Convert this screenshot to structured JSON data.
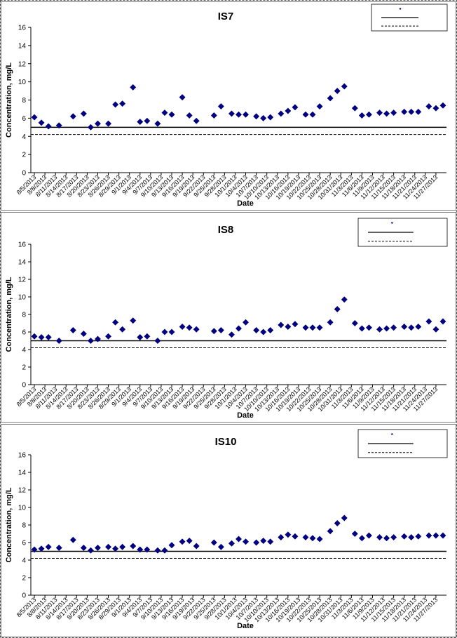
{
  "chart_data": [
    {
      "type": "scatter",
      "title": "IS7",
      "xlabel": "Date",
      "ylabel": "Concentration, mg/L",
      "ylim": [
        0,
        16
      ],
      "yticks": [
        0,
        2,
        4,
        6,
        8,
        10,
        12,
        14,
        16
      ],
      "grid": false,
      "legend_position": "top-right",
      "x_tick_labels": [
        "8/5/2013",
        "8/8/2013",
        "8/11/2013",
        "8/14/2013",
        "8/17/2013",
        "8/20/2013",
        "8/23/2013",
        "8/26/2013",
        "8/29/2013",
        "9/1/2013",
        "9/4/2013",
        "9/7/2013",
        "9/10/2013",
        "9/13/2013",
        "9/16/2013",
        "9/19/2013",
        "9/22/2013",
        "9/25/2013",
        "9/28/2013",
        "10/1/2013",
        "10/4/2013",
        "10/7/2013",
        "10/10/2013",
        "10/13/2013",
        "10/16/2013",
        "10/19/2013",
        "10/22/2013",
        "10/25/2013",
        "10/28/2013",
        "10/31/2013",
        "11/3/2013",
        "11/6/2013",
        "11/9/2013",
        "11/12/2013",
        "11/15/2013",
        "11/18/2013",
        "11/21/2013",
        "11/24/2013",
        "11/27/2013"
      ],
      "reference_lines": [
        {
          "style": "solid",
          "value": 5.0
        },
        {
          "style": "dashed",
          "value": 4.2
        }
      ],
      "points": [
        {
          "x": "8/5/2013",
          "y": 6.1
        },
        {
          "x": "8/7/2013",
          "y": 5.5
        },
        {
          "x": "8/9/2013",
          "y": 5.1
        },
        {
          "x": "8/12/2013",
          "y": 5.2
        },
        {
          "x": "8/16/2013",
          "y": 6.2
        },
        {
          "x": "8/19/2013",
          "y": 6.5
        },
        {
          "x": "8/21/2013",
          "y": 5.0
        },
        {
          "x": "8/23/2013",
          "y": 5.4
        },
        {
          "x": "8/26/2013",
          "y": 5.4
        },
        {
          "x": "8/28/2013",
          "y": 7.5
        },
        {
          "x": "8/30/2013",
          "y": 7.6
        },
        {
          "x": "9/2/2013",
          "y": 9.4
        },
        {
          "x": "9/4/2013",
          "y": 5.6
        },
        {
          "x": "9/6/2013",
          "y": 5.7
        },
        {
          "x": "9/9/2013",
          "y": 5.4
        },
        {
          "x": "9/11/2013",
          "y": 6.6
        },
        {
          "x": "9/13/2013",
          "y": 6.4
        },
        {
          "x": "9/16/2013",
          "y": 8.3
        },
        {
          "x": "9/18/2013",
          "y": 6.3
        },
        {
          "x": "9/20/2013",
          "y": 5.7
        },
        {
          "x": "9/25/2013",
          "y": 6.3
        },
        {
          "x": "9/27/2013",
          "y": 7.3
        },
        {
          "x": "9/30/2013",
          "y": 6.5
        },
        {
          "x": "10/2/2013",
          "y": 6.4
        },
        {
          "x": "10/4/2013",
          "y": 6.4
        },
        {
          "x": "10/7/2013",
          "y": 6.2
        },
        {
          "x": "10/9/2013",
          "y": 6.0
        },
        {
          "x": "10/11/2013",
          "y": 6.1
        },
        {
          "x": "10/14/2013",
          "y": 6.5
        },
        {
          "x": "10/16/2013",
          "y": 6.8
        },
        {
          "x": "10/18/2013",
          "y": 7.2
        },
        {
          "x": "10/21/2013",
          "y": 6.4
        },
        {
          "x": "10/23/2013",
          "y": 6.4
        },
        {
          "x": "10/25/2013",
          "y": 7.3
        },
        {
          "x": "10/28/2013",
          "y": 8.2
        },
        {
          "x": "10/30/2013",
          "y": 9.0
        },
        {
          "x": "11/1/2013",
          "y": 9.5
        },
        {
          "x": "11/4/2013",
          "y": 7.1
        },
        {
          "x": "11/6/2013",
          "y": 6.3
        },
        {
          "x": "11/8/2013",
          "y": 6.4
        },
        {
          "x": "11/11/2013",
          "y": 6.6
        },
        {
          "x": "11/13/2013",
          "y": 6.5
        },
        {
          "x": "11/15/2013",
          "y": 6.6
        },
        {
          "x": "11/18/2013",
          "y": 6.7
        },
        {
          "x": "11/20/2013",
          "y": 6.7
        },
        {
          "x": "11/22/2013",
          "y": 6.7
        },
        {
          "x": "11/25/2013",
          "y": 7.3
        },
        {
          "x": "11/27/2013",
          "y": 7.1
        },
        {
          "x": "11/29/2013",
          "y": 7.4
        }
      ]
    },
    {
      "type": "scatter",
      "title": "IS8",
      "xlabel": "Date",
      "ylabel": "Concentration, mg/L",
      "ylim": [
        0,
        16
      ],
      "yticks": [
        0,
        2,
        4,
        6,
        8,
        10,
        12,
        14,
        16
      ],
      "grid": false,
      "legend_position": "top-right",
      "x_tick_labels": [
        "8/5/2013",
        "8/8/2013",
        "8/11/2013",
        "8/14/2013",
        "8/17/2013",
        "8/20/2013",
        "8/23/2013",
        "8/26/2013",
        "8/29/2013",
        "9/1/2013",
        "9/4/2013",
        "9/7/2013",
        "9/10/2013",
        "9/13/2013",
        "9/16/2013",
        "9/19/2013",
        "9/22/2013",
        "9/25/2013",
        "9/28/2013",
        "10/1/2013",
        "10/4/2013",
        "10/7/2013",
        "10/10/2013",
        "10/13/2013",
        "10/16/2013",
        "10/19/2013",
        "10/22/2013",
        "10/25/2013",
        "10/28/2013",
        "10/31/2013",
        "11/3/2013",
        "11/6/2013",
        "11/9/2013",
        "11/12/2013",
        "11/15/2013",
        "11/18/2013",
        "11/21/2013",
        "11/24/2013",
        "11/27/2013"
      ],
      "reference_lines": [
        {
          "style": "solid",
          "value": 5.0
        },
        {
          "style": "dashed",
          "value": 4.2
        }
      ],
      "points": [
        {
          "x": "8/5/2013",
          "y": 5.5
        },
        {
          "x": "8/7/2013",
          "y": 5.4
        },
        {
          "x": "8/9/2013",
          "y": 5.4
        },
        {
          "x": "8/12/2013",
          "y": 5.0
        },
        {
          "x": "8/16/2013",
          "y": 6.2
        },
        {
          "x": "8/19/2013",
          "y": 5.8
        },
        {
          "x": "8/21/2013",
          "y": 5.0
        },
        {
          "x": "8/23/2013",
          "y": 5.2
        },
        {
          "x": "8/26/2013",
          "y": 5.5
        },
        {
          "x": "8/28/2013",
          "y": 7.1
        },
        {
          "x": "8/30/2013",
          "y": 6.3
        },
        {
          "x": "9/2/2013",
          "y": 7.3
        },
        {
          "x": "9/4/2013",
          "y": 5.4
        },
        {
          "x": "9/6/2013",
          "y": 5.5
        },
        {
          "x": "9/9/2013",
          "y": 5.0
        },
        {
          "x": "9/11/2013",
          "y": 6.0
        },
        {
          "x": "9/13/2013",
          "y": 6.0
        },
        {
          "x": "9/16/2013",
          "y": 6.6
        },
        {
          "x": "9/18/2013",
          "y": 6.5
        },
        {
          "x": "9/20/2013",
          "y": 6.3
        },
        {
          "x": "9/25/2013",
          "y": 6.1
        },
        {
          "x": "9/27/2013",
          "y": 6.2
        },
        {
          "x": "9/30/2013",
          "y": 5.7
        },
        {
          "x": "10/2/2013",
          "y": 6.4
        },
        {
          "x": "10/4/2013",
          "y": 7.1
        },
        {
          "x": "10/7/2013",
          "y": 6.2
        },
        {
          "x": "10/9/2013",
          "y": 6.0
        },
        {
          "x": "10/11/2013",
          "y": 6.2
        },
        {
          "x": "10/14/2013",
          "y": 6.8
        },
        {
          "x": "10/16/2013",
          "y": 6.6
        },
        {
          "x": "10/18/2013",
          "y": 6.9
        },
        {
          "x": "10/21/2013",
          "y": 6.5
        },
        {
          "x": "10/23/2013",
          "y": 6.5
        },
        {
          "x": "10/25/2013",
          "y": 6.5
        },
        {
          "x": "10/28/2013",
          "y": 7.1
        },
        {
          "x": "10/30/2013",
          "y": 8.6
        },
        {
          "x": "11/1/2013",
          "y": 9.7
        },
        {
          "x": "11/4/2013",
          "y": 7.0
        },
        {
          "x": "11/6/2013",
          "y": 6.4
        },
        {
          "x": "11/8/2013",
          "y": 6.5
        },
        {
          "x": "11/11/2013",
          "y": 6.3
        },
        {
          "x": "11/13/2013",
          "y": 6.4
        },
        {
          "x": "11/15/2013",
          "y": 6.5
        },
        {
          "x": "11/18/2013",
          "y": 6.6
        },
        {
          "x": "11/20/2013",
          "y": 6.5
        },
        {
          "x": "11/22/2013",
          "y": 6.6
        },
        {
          "x": "11/25/2013",
          "y": 7.2
        },
        {
          "x": "11/27/2013",
          "y": 6.3
        },
        {
          "x": "11/29/2013",
          "y": 7.2
        }
      ]
    },
    {
      "type": "scatter",
      "title": "IS10",
      "xlabel": "Date",
      "ylabel": "Concentration, mg/L",
      "ylim": [
        0,
        16
      ],
      "yticks": [
        0,
        2,
        4,
        6,
        8,
        10,
        12,
        14,
        16
      ],
      "grid": false,
      "legend_position": "top-right",
      "x_tick_labels": [
        "8/5/2013",
        "8/8/2013",
        "8/11/2013",
        "8/14/2013",
        "8/17/2013",
        "8/20/2013",
        "8/23/2013",
        "8/26/2013",
        "8/29/2013",
        "9/1/2013",
        "9/4/2013",
        "9/7/2013",
        "9/10/2013",
        "9/13/2013",
        "9/16/2013",
        "9/19/2013",
        "9/22/2013",
        "9/25/2013",
        "9/28/2013",
        "10/1/2013",
        "10/4/2013",
        "10/7/2013",
        "10/10/2013",
        "10/13/2013",
        "10/16/2013",
        "10/19/2013",
        "10/22/2013",
        "10/25/2013",
        "10/28/2013",
        "10/31/2013",
        "11/3/2013",
        "11/6/2013",
        "11/9/2013",
        "11/12/2013",
        "11/15/2013",
        "11/18/2013",
        "11/21/2013",
        "11/24/2013",
        "11/27/2013"
      ],
      "reference_lines": [
        {
          "style": "solid",
          "value": 5.0
        },
        {
          "style": "dashed",
          "value": 4.2
        }
      ],
      "points": [
        {
          "x": "8/5/2013",
          "y": 5.2
        },
        {
          "x": "8/7/2013",
          "y": 5.3
        },
        {
          "x": "8/9/2013",
          "y": 5.5
        },
        {
          "x": "8/12/2013",
          "y": 5.4
        },
        {
          "x": "8/16/2013",
          "y": 6.3
        },
        {
          "x": "8/19/2013",
          "y": 5.4
        },
        {
          "x": "8/21/2013",
          "y": 5.1
        },
        {
          "x": "8/23/2013",
          "y": 5.4
        },
        {
          "x": "8/26/2013",
          "y": 5.5
        },
        {
          "x": "8/28/2013",
          "y": 5.3
        },
        {
          "x": "8/30/2013",
          "y": 5.5
        },
        {
          "x": "9/2/2013",
          "y": 5.6
        },
        {
          "x": "9/4/2013",
          "y": 5.2
        },
        {
          "x": "9/6/2013",
          "y": 5.2
        },
        {
          "x": "9/9/2013",
          "y": 5.1
        },
        {
          "x": "9/11/2013",
          "y": 5.1
        },
        {
          "x": "9/13/2013",
          "y": 5.7
        },
        {
          "x": "9/16/2013",
          "y": 6.1
        },
        {
          "x": "9/18/2013",
          "y": 6.2
        },
        {
          "x": "9/20/2013",
          "y": 5.6
        },
        {
          "x": "9/25/2013",
          "y": 6.0
        },
        {
          "x": "9/27/2013",
          "y": 5.5
        },
        {
          "x": "9/30/2013",
          "y": 5.9
        },
        {
          "x": "10/2/2013",
          "y": 6.4
        },
        {
          "x": "10/4/2013",
          "y": 6.1
        },
        {
          "x": "10/7/2013",
          "y": 6.0
        },
        {
          "x": "10/9/2013",
          "y": 6.2
        },
        {
          "x": "10/11/2013",
          "y": 6.1
        },
        {
          "x": "10/14/2013",
          "y": 6.6
        },
        {
          "x": "10/16/2013",
          "y": 6.9
        },
        {
          "x": "10/18/2013",
          "y": 6.7
        },
        {
          "x": "10/21/2013",
          "y": 6.6
        },
        {
          "x": "10/23/2013",
          "y": 6.5
        },
        {
          "x": "10/25/2013",
          "y": 6.4
        },
        {
          "x": "10/28/2013",
          "y": 7.3
        },
        {
          "x": "10/30/2013",
          "y": 8.2
        },
        {
          "x": "11/1/2013",
          "y": 8.8
        },
        {
          "x": "11/4/2013",
          "y": 7.0
        },
        {
          "x": "11/6/2013",
          "y": 6.5
        },
        {
          "x": "11/8/2013",
          "y": 6.8
        },
        {
          "x": "11/11/2013",
          "y": 6.6
        },
        {
          "x": "11/13/2013",
          "y": 6.5
        },
        {
          "x": "11/15/2013",
          "y": 6.6
        },
        {
          "x": "11/18/2013",
          "y": 6.7
        },
        {
          "x": "11/20/2013",
          "y": 6.6
        },
        {
          "x": "11/22/2013",
          "y": 6.7
        },
        {
          "x": "11/25/2013",
          "y": 6.8
        },
        {
          "x": "11/27/2013",
          "y": 6.8
        },
        {
          "x": "11/29/2013",
          "y": 6.8
        }
      ]
    }
  ],
  "colors": {
    "marker": "#000080",
    "reference_line": "#000000",
    "panel_border": "#808080",
    "page_border": "#555555"
  }
}
